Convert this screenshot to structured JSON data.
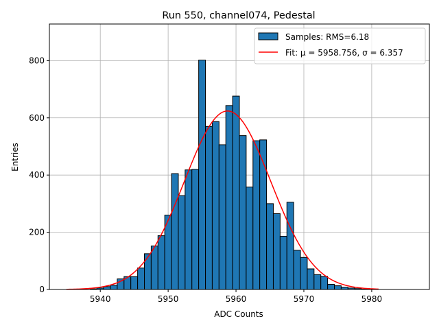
{
  "chart_data": {
    "type": "bar",
    "title": "Run 550, channel074, Pedestal",
    "xlabel": "ADC Counts",
    "ylabel": "Entries",
    "xlim": [
      5932.5,
      5988.5
    ],
    "ylim": [
      0,
      928
    ],
    "xticks": [
      5940,
      5950,
      5960,
      5970,
      5980
    ],
    "yticks": [
      0,
      200,
      400,
      600,
      800
    ],
    "grid": true,
    "legend_position": "top-right",
    "colors": {
      "bars": "#1f77b4",
      "fit": "#ff0000"
    },
    "bin_width": 1,
    "series": [
      {
        "name": "Samples: RMS=6.18",
        "type": "histogram",
        "x": [
          5939,
          5940,
          5941,
          5942,
          5943,
          5944,
          5945,
          5946,
          5947,
          5948,
          5949,
          5950,
          5951,
          5952,
          5953,
          5954,
          5955,
          5956,
          5957,
          5958,
          5959,
          5960,
          5961,
          5962,
          5963,
          5964,
          5965,
          5966,
          5967,
          5968,
          5969,
          5970,
          5971,
          5972,
          5973,
          5974,
          5975,
          5976,
          5977,
          5978,
          5979
        ],
        "values": [
          2,
          5,
          10,
          15,
          37,
          45,
          45,
          75,
          125,
          152,
          188,
          260,
          405,
          328,
          418,
          420,
          802,
          570,
          587,
          506,
          643,
          676,
          538,
          358,
          520,
          523,
          300,
          265,
          186,
          305,
          137,
          112,
          72,
          52,
          46,
          18,
          13,
          8,
          5,
          3,
          1
        ]
      },
      {
        "name": "Fit: μ = 5958.756, σ = 6.357",
        "type": "gaussian",
        "mu": 5958.756,
        "sigma": 6.357,
        "amplitude": 624,
        "x_range": [
          5935,
          5981
        ]
      }
    ]
  }
}
